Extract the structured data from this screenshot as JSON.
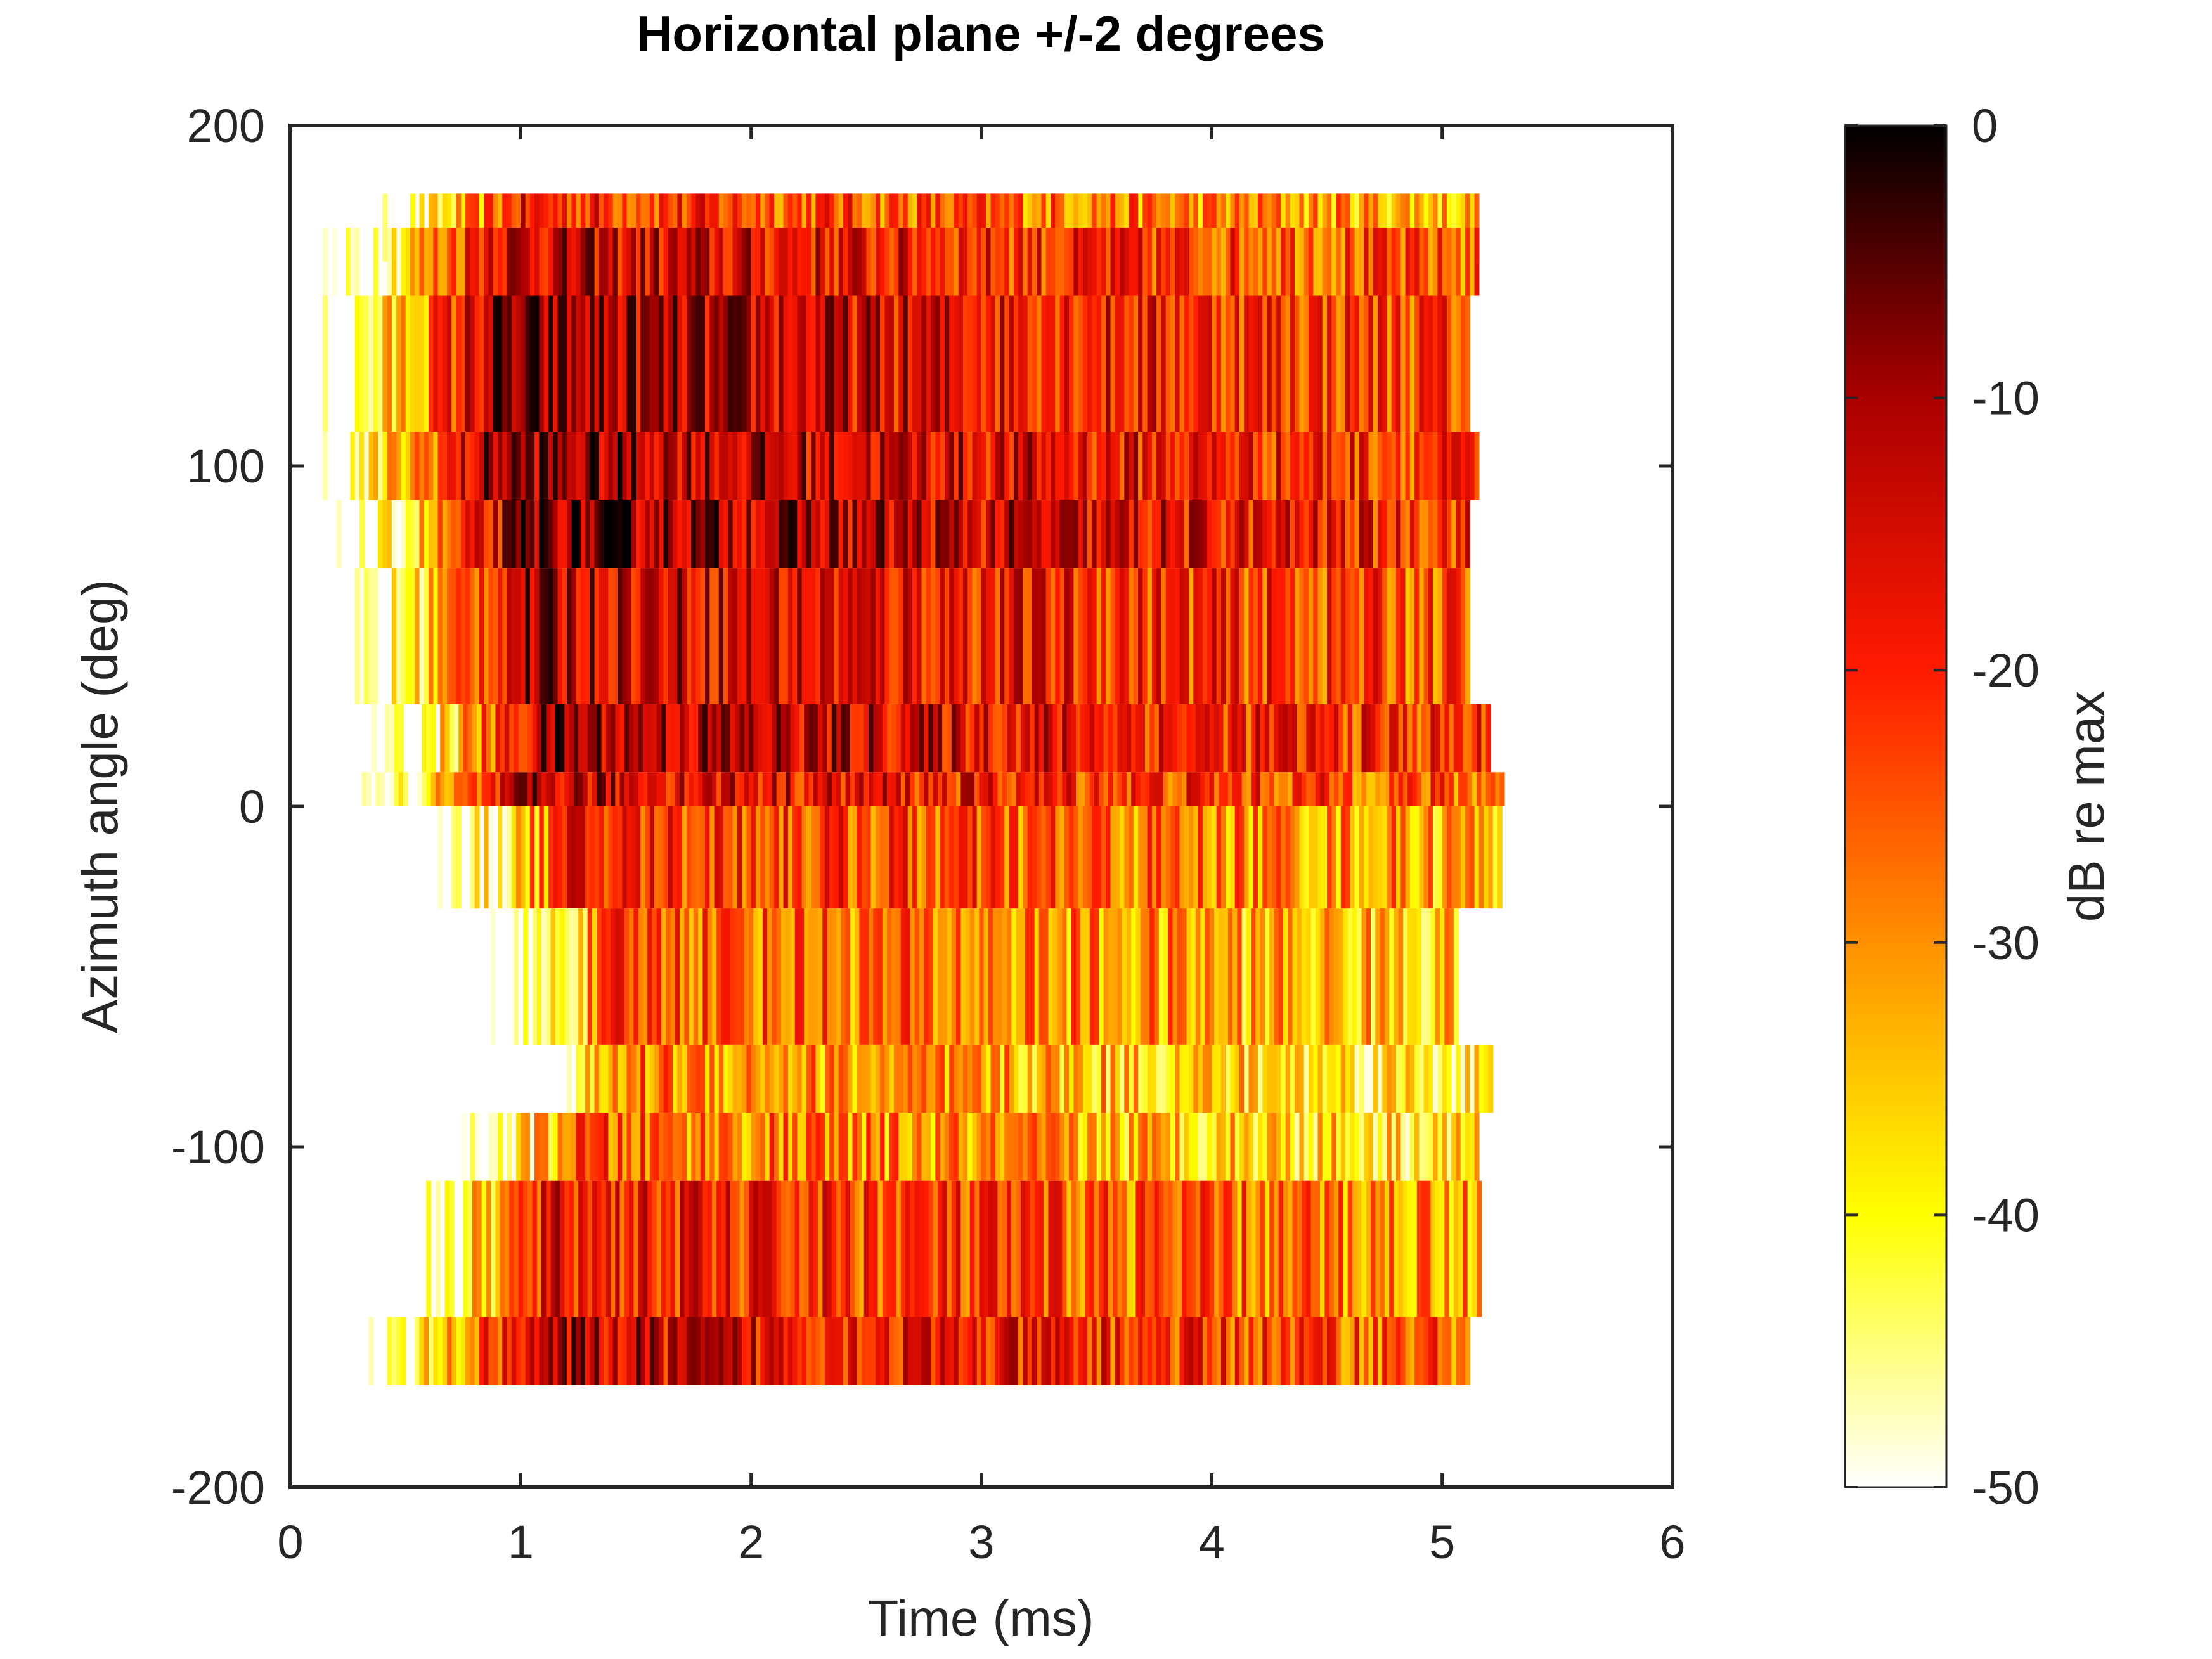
{
  "chart_data": {
    "type": "heatmap",
    "title": "Horizontal plane +/-2 degrees",
    "xlabel": "Time (ms)",
    "ylabel": "Azimuth angle (deg)",
    "xlim": [
      0,
      6
    ],
    "ylim": [
      -200,
      200
    ],
    "xticks": [
      "0",
      "1",
      "2",
      "3",
      "4",
      "5",
      "6"
    ],
    "yticks": [
      "-200",
      "-100",
      "0",
      "100",
      "200"
    ],
    "colorbar": {
      "label": "dB re max",
      "range": [
        -50,
        0
      ],
      "ticks": [
        "0",
        "-10",
        "-20",
        "-30",
        "-40",
        "-50"
      ],
      "colormap": "hot (reversed)",
      "stops": [
        "#ffffff",
        "#ffff00",
        "#ff9000",
        "#ff1a00",
        "#aa0000",
        "#000000"
      ]
    },
    "x_range": [
      0.1,
      5.25
    ],
    "bins": [
      {
        "angle_min": 160,
        "angle_max": 180,
        "t_start": 0.12,
        "t_end": 5.15,
        "peak_time": 0.95,
        "peak_db": -12
      },
      {
        "angle_min": 150,
        "angle_max": 170,
        "t_start": 0.12,
        "t_end": 5.15,
        "peak_time": 0.85,
        "peak_db": -5
      },
      {
        "angle_min": 110,
        "angle_max": 150,
        "t_start": 0.1,
        "t_end": 5.1,
        "peak_time": 0.85,
        "peak_db": -2
      },
      {
        "angle_min": 90,
        "angle_max": 110,
        "t_start": 0.1,
        "t_end": 5.15,
        "peak_time": 0.85,
        "peak_db": -1
      },
      {
        "angle_min": 70,
        "angle_max": 90,
        "t_start": 0.1,
        "t_end": 5.1,
        "peak_time": 1.0,
        "peak_db": 0
      },
      {
        "angle_min": 30,
        "angle_max": 70,
        "t_start": 0.1,
        "t_end": 5.1,
        "peak_time": 0.95,
        "peak_db": -4
      },
      {
        "angle_min": 10,
        "angle_max": 30,
        "t_start": 0.15,
        "t_end": 5.2,
        "peak_time": 1.1,
        "peak_db": -2
      },
      {
        "angle_min": 0,
        "angle_max": 10,
        "t_start": 0.15,
        "t_end": 5.25,
        "peak_time": 1.0,
        "peak_db": -5
      },
      {
        "angle_min": -30,
        "angle_max": 0,
        "t_start": 0.2,
        "t_end": 5.25,
        "peak_time": 1.2,
        "peak_db": -12
      },
      {
        "angle_min": -70,
        "angle_max": -30,
        "t_start": 0.65,
        "t_end": 5.05,
        "peak_time": 1.4,
        "peak_db": -16
      },
      {
        "angle_min": -90,
        "angle_max": -70,
        "t_start": 1.2,
        "t_end": 5.2,
        "peak_time": 1.45,
        "peak_db": -20
      },
      {
        "angle_min": -110,
        "angle_max": -90,
        "t_start": 0.3,
        "t_end": 5.15,
        "peak_time": 1.2,
        "peak_db": -18
      },
      {
        "angle_min": -150,
        "angle_max": -110,
        "t_start": 0.25,
        "t_end": 5.15,
        "peak_time": 1.1,
        "peak_db": -10
      },
      {
        "angle_min": -170,
        "angle_max": -150,
        "t_start": 0.2,
        "t_end": 5.1,
        "peak_time": 1.0,
        "peak_db": -5
      }
    ]
  }
}
